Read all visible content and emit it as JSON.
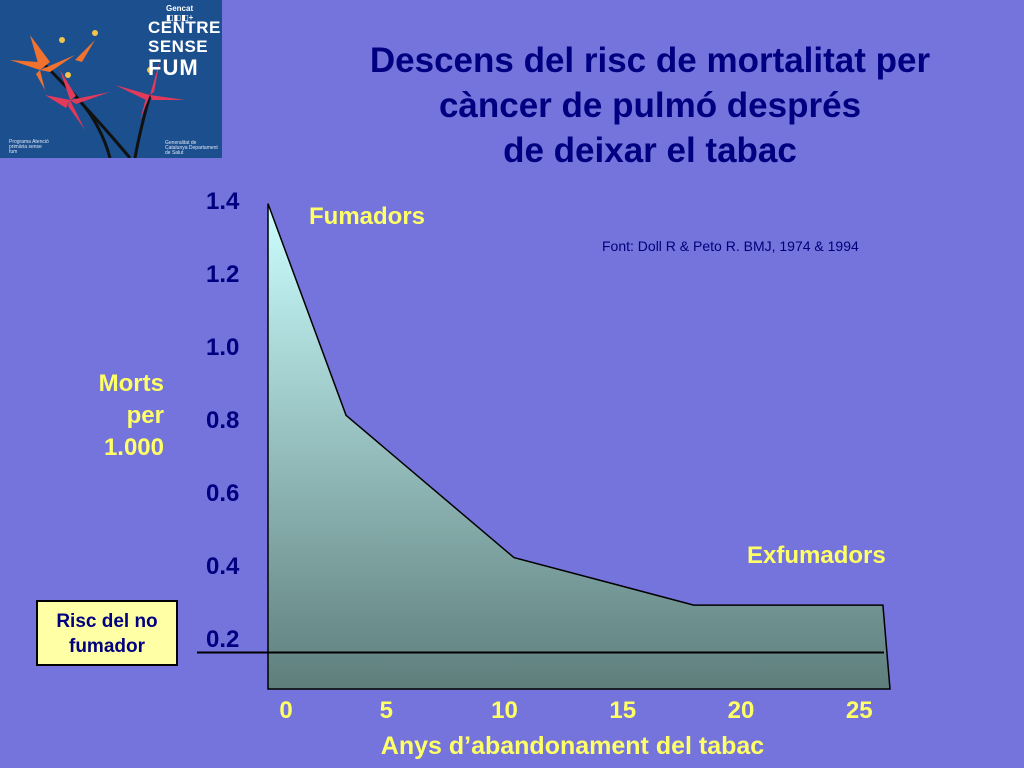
{
  "logo": {
    "top_text": "Gencat ◧◧◧+",
    "line1": "CENTRE",
    "line2": "SENSE",
    "line3": "FUM",
    "small_left": "Programa Atenció primària sense fum",
    "small_right": "Generalitat de Catalunya Departament de Salut"
  },
  "title": {
    "line1": "Descens del risc de mortalitat per",
    "line2": "càncer de pulmó després",
    "line3": "de deixar el tabac"
  },
  "source": "Font: Doll R & Peto R.  BMJ, 1974 & 1994",
  "labels": {
    "fumadors": "Fumadors",
    "exfumadors": "Exfumadors",
    "ylabel_line1": "Morts",
    "ylabel_line2": "per",
    "ylabel_line3": "1.000",
    "xlabel": "Anys d’abandonament del tabac",
    "nofum_line1": "Risc del no",
    "nofum_line2": "fumador"
  },
  "colors": {
    "background": "#7474dc",
    "title": "#000080",
    "accent": "#ffff66",
    "area_top": "#ccffff",
    "area_bottom": "#5e7e7c"
  },
  "chart_data": {
    "type": "area",
    "title": "Descens del risc de mortalitat per càncer de pulmó després de deixar el tabac",
    "xlabel": "Anys d’abandonament del tabac",
    "ylabel": "Morts per 1.000",
    "x": [
      0,
      3.3,
      10.4,
      18,
      26,
      26.3
    ],
    "y": [
      1.39,
      0.81,
      0.42,
      0.29,
      0.29,
      0.06
    ],
    "baseline_y": 0.06,
    "reference_line": {
      "label": "Risc del no fumador",
      "y": 0.16
    },
    "xticks": [
      "0",
      "5",
      "10",
      "15",
      "20",
      "25"
    ],
    "xtick_values": [
      0,
      5,
      10,
      15,
      20,
      25
    ],
    "yticks": [
      "1.4",
      "1.2",
      "1.0",
      "0.8",
      "0.6",
      "0.4",
      "0.2"
    ],
    "ytick_values": [
      1.4,
      1.2,
      1.0,
      0.8,
      0.6,
      0.4,
      0.2
    ],
    "xlim": [
      0,
      26.3
    ],
    "ylim": [
      0.06,
      1.4
    ],
    "annotations": [
      "Fumadors",
      "Exfumadors"
    ]
  }
}
